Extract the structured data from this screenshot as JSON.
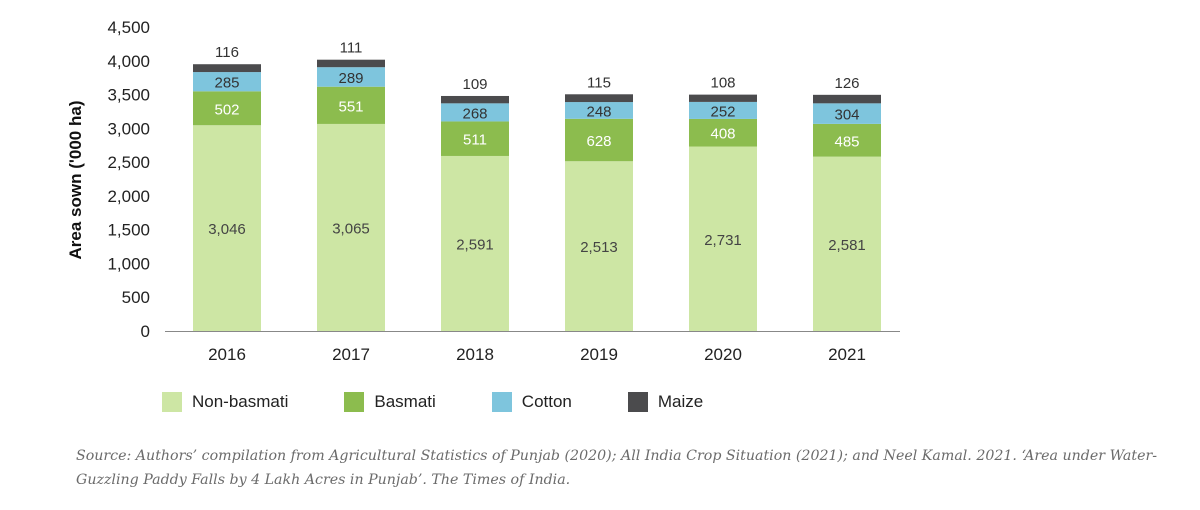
{
  "chart_data": {
    "type": "bar",
    "stacked": true,
    "categories": [
      "2016",
      "2017",
      "2018",
      "2019",
      "2020",
      "2021"
    ],
    "series": [
      {
        "name": "Non-basmati",
        "color": "#cde6a4",
        "label_color": "#444444",
        "values": [
          3046,
          3065,
          2591,
          2513,
          2731,
          2581
        ],
        "labels": [
          "3,046",
          "3,065",
          "2,591",
          "2,513",
          "2,731",
          "2,581"
        ]
      },
      {
        "name": "Basmati",
        "color": "#8cbc4e",
        "label_color": "#ffffff",
        "values": [
          502,
          551,
          511,
          628,
          408,
          485
        ],
        "labels": [
          "502",
          "551",
          "511",
          "628",
          "408",
          "485"
        ]
      },
      {
        "name": "Cotton",
        "color": "#7ec5dd",
        "label_color": "#333333",
        "values": [
          285,
          289,
          268,
          248,
          252,
          304
        ],
        "labels": [
          "285",
          "289",
          "268",
          "248",
          "252",
          "304"
        ]
      },
      {
        "name": "Maize",
        "color": "#4b4b4d",
        "label_color": "#333333",
        "values": [
          116,
          111,
          109,
          115,
          108,
          126
        ],
        "labels": [
          "116",
          "111",
          "109",
          "115",
          "108",
          "126"
        ]
      }
    ],
    "title": "",
    "xlabel": "",
    "ylabel": "Area sown ('000 ha)",
    "ylim": [
      0,
      4500
    ],
    "yticks": [
      0,
      500,
      1000,
      1500,
      2000,
      2500,
      3000,
      3500,
      4000,
      4500
    ],
    "ytick_labels": [
      "0",
      "500",
      "1,000",
      "1,500",
      "2,000",
      "2,500",
      "3,000",
      "3,500",
      "4,000",
      "4,500"
    ],
    "grid": false,
    "legend": "bottom-left"
  },
  "source": "Source: Authors’ compilation from Agricultural Statistics of Punjab (2020); All India Crop Situation (2021); and Neel Kamal. 2021. ‘Area under Water-Guzzling Paddy Falls by 4 Lakh Acres in Punjab’. The Times of India."
}
